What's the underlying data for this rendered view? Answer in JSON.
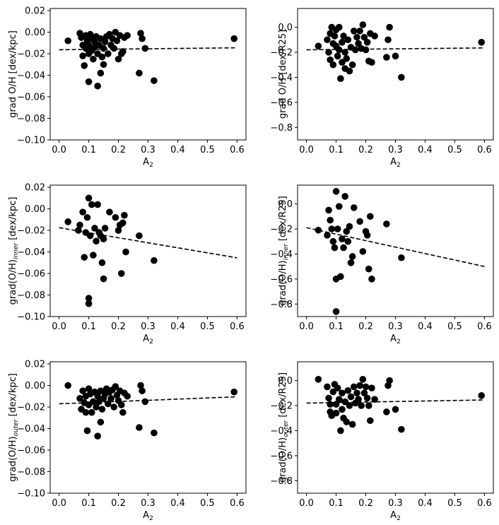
{
  "chart_data": [
    {
      "type": "scatter",
      "xlabel": "A",
      "xlabel_sub": "2",
      "ylabel": "grad O/H [dex/kpc]",
      "ylabel_sub": "",
      "ylabel_suffix": "",
      "xlim": [
        -0.03,
        0.63
      ],
      "ylim": [
        -0.1,
        0.022
      ],
      "xticks": [
        0.0,
        0.1,
        0.2,
        0.3,
        0.4,
        0.5,
        0.6
      ],
      "xtick_labels": [
        "0.0",
        "0.1",
        "0.2",
        "0.3",
        "0.4",
        "0.5",
        "0.6"
      ],
      "yticks": [
        -0.1,
        -0.08,
        -0.06,
        -0.04,
        -0.02,
        0.0,
        0.02
      ],
      "ytick_labels": [
        "−0.10",
        "−0.08",
        "−0.06",
        "−0.04",
        "−0.02",
        "0.00",
        "0.02"
      ],
      "fit": [
        [
          0.0,
          -0.0163
        ],
        [
          0.6,
          -0.0145
        ]
      ],
      "points": [
        [
          0.03,
          -0.008
        ],
        [
          0.07,
          -0.001
        ],
        [
          0.075,
          -0.005
        ],
        [
          0.08,
          -0.012
        ],
        [
          0.08,
          -0.022
        ],
        [
          0.085,
          -0.031
        ],
        [
          0.09,
          -0.015
        ],
        [
          0.09,
          -0.003
        ],
        [
          0.095,
          -0.008
        ],
        [
          0.1,
          -0.046
        ],
        [
          0.1,
          -0.02
        ],
        [
          0.1,
          -0.012
        ],
        [
          0.105,
          -0.002
        ],
        [
          0.11,
          -0.006
        ],
        [
          0.11,
          -0.017
        ],
        [
          0.115,
          -0.025
        ],
        [
          0.12,
          -0.009
        ],
        [
          0.12,
          -0.014
        ],
        [
          0.125,
          -0.004
        ],
        [
          0.13,
          -0.05
        ],
        [
          0.13,
          -0.02
        ],
        [
          0.135,
          -0.012
        ],
        [
          0.14,
          -0.038
        ],
        [
          0.14,
          -0.006
        ],
        [
          0.145,
          -0.023
        ],
        [
          0.15,
          -0.03
        ],
        [
          0.15,
          -0.015
        ],
        [
          0.155,
          -0.009
        ],
        [
          0.16,
          -0.004
        ],
        [
          0.165,
          -0.02
        ],
        [
          0.17,
          -0.002
        ],
        [
          0.175,
          -0.012
        ],
        [
          0.18,
          -0.006
        ],
        [
          0.185,
          -0.015
        ],
        [
          0.19,
          0.0
        ],
        [
          0.195,
          -0.008
        ],
        [
          0.2,
          -0.025
        ],
        [
          0.205,
          -0.003
        ],
        [
          0.21,
          -0.02
        ],
        [
          0.215,
          -0.018
        ],
        [
          0.22,
          -0.005
        ],
        [
          0.23,
          -0.003
        ],
        [
          0.27,
          -0.038
        ],
        [
          0.275,
          -0.001
        ],
        [
          0.28,
          -0.006
        ],
        [
          0.29,
          -0.015
        ],
        [
          0.32,
          -0.045
        ],
        [
          0.59,
          -0.006
        ]
      ]
    },
    {
      "type": "scatter",
      "xlabel": "A",
      "xlabel_sub": "2",
      "ylabel": "grad O/H [dex/R25]",
      "ylabel_sub": "",
      "ylabel_suffix": "",
      "xlim": [
        -0.03,
        0.63
      ],
      "ylim": [
        -0.9,
        0.15
      ],
      "xticks": [
        0.0,
        0.1,
        0.2,
        0.3,
        0.4,
        0.5,
        0.6
      ],
      "xtick_labels": [
        "0.0",
        "0.1",
        "0.2",
        "0.3",
        "0.4",
        "0.5",
        "0.6"
      ],
      "yticks": [
        -0.8,
        -0.6,
        -0.4,
        -0.2,
        0.0
      ],
      "ytick_labels": [
        "−0.8",
        "−0.6",
        "−0.4",
        "−0.2",
        "0.0"
      ],
      "fit": [
        [
          0.0,
          -0.18
        ],
        [
          0.6,
          -0.165
        ]
      ],
      "points": [
        [
          0.04,
          -0.15
        ],
        [
          0.07,
          -0.1
        ],
        [
          0.075,
          -0.2
        ],
        [
          0.08,
          -0.26
        ],
        [
          0.08,
          -0.05
        ],
        [
          0.085,
          0.0
        ],
        [
          0.09,
          -0.13
        ],
        [
          0.09,
          -0.3
        ],
        [
          0.095,
          -0.07
        ],
        [
          0.1,
          -0.15
        ],
        [
          0.1,
          -0.02
        ],
        [
          0.105,
          -0.23
        ],
        [
          0.11,
          -0.18
        ],
        [
          0.11,
          0.0
        ],
        [
          0.115,
          -0.41
        ],
        [
          0.12,
          -0.28
        ],
        [
          0.12,
          -0.12
        ],
        [
          0.125,
          -0.07
        ],
        [
          0.13,
          -0.33
        ],
        [
          0.13,
          -0.2
        ],
        [
          0.135,
          -0.25
        ],
        [
          0.14,
          -0.1
        ],
        [
          0.145,
          -0.35
        ],
        [
          0.15,
          -0.16
        ],
        [
          0.155,
          -0.3
        ],
        [
          0.16,
          -0.03
        ],
        [
          0.165,
          -0.18
        ],
        [
          0.17,
          -0.08
        ],
        [
          0.175,
          -0.13
        ],
        [
          0.18,
          -0.03
        ],
        [
          0.185,
          -0.17
        ],
        [
          0.19,
          0.02
        ],
        [
          0.195,
          -0.08
        ],
        [
          0.2,
          -0.18
        ],
        [
          0.205,
          -0.12
        ],
        [
          0.21,
          -0.27
        ],
        [
          0.215,
          -0.05
        ],
        [
          0.22,
          -0.28
        ],
        [
          0.23,
          -0.07
        ],
        [
          0.27,
          -0.24
        ],
        [
          0.275,
          -0.1
        ],
        [
          0.28,
          0.0
        ],
        [
          0.3,
          -0.23
        ],
        [
          0.32,
          -0.4
        ],
        [
          0.59,
          -0.12
        ]
      ]
    },
    {
      "type": "scatter",
      "xlabel": "A",
      "xlabel_sub": "2",
      "ylabel": "grad(O/H)",
      "ylabel_sub": "inner",
      "ylabel_suffix": " [dex/kpc]",
      "xlim": [
        -0.03,
        0.63
      ],
      "ylim": [
        -0.1,
        0.022
      ],
      "xticks": [
        0.0,
        0.1,
        0.2,
        0.3,
        0.4,
        0.5,
        0.6
      ],
      "xtick_labels": [
        "0.0",
        "0.1",
        "0.2",
        "0.3",
        "0.4",
        "0.5",
        "0.6"
      ],
      "yticks": [
        -0.1,
        -0.08,
        -0.06,
        -0.04,
        -0.02,
        0.0,
        0.02
      ],
      "ytick_labels": [
        "−0.10",
        "−0.08",
        "−0.06",
        "−0.04",
        "−0.02",
        "0.00",
        "0.02"
      ],
      "fit": [
        [
          0.0,
          -0.0175
        ],
        [
          0.6,
          -0.0455
        ]
      ],
      "points": [
        [
          0.03,
          -0.012
        ],
        [
          0.065,
          -0.02
        ],
        [
          0.07,
          -0.015
        ],
        [
          0.08,
          -0.003
        ],
        [
          0.085,
          -0.045
        ],
        [
          0.09,
          -0.022
        ],
        [
          0.095,
          -0.008
        ],
        [
          0.1,
          -0.083
        ],
        [
          0.1,
          -0.088
        ],
        [
          0.1,
          0.01
        ],
        [
          0.105,
          -0.025
        ],
        [
          0.11,
          0.004
        ],
        [
          0.115,
          -0.043
        ],
        [
          0.12,
          -0.018
        ],
        [
          0.125,
          -0.03
        ],
        [
          0.13,
          0.004
        ],
        [
          0.135,
          -0.022
        ],
        [
          0.14,
          -0.025
        ],
        [
          0.145,
          -0.05
        ],
        [
          0.15,
          -0.065
        ],
        [
          0.15,
          -0.028
        ],
        [
          0.155,
          -0.018
        ],
        [
          0.17,
          -0.003
        ],
        [
          0.19,
          -0.008
        ],
        [
          0.2,
          -0.02
        ],
        [
          0.205,
          -0.015
        ],
        [
          0.21,
          -0.06
        ],
        [
          0.215,
          -0.013
        ],
        [
          0.22,
          -0.006
        ],
        [
          0.225,
          -0.04
        ],
        [
          0.27,
          -0.025
        ],
        [
          0.32,
          -0.048
        ]
      ]
    },
    {
      "type": "scatter",
      "xlabel": "A",
      "xlabel_sub": "2",
      "ylabel": "grad(O/H)",
      "ylabel_sub": "inner",
      "ylabel_suffix": " [dex/R25]",
      "xlim": [
        -0.03,
        0.63
      ],
      "ylim": [
        -0.9,
        0.15
      ],
      "xticks": [
        0.0,
        0.1,
        0.2,
        0.3,
        0.4,
        0.5,
        0.6
      ],
      "xtick_labels": [
        "0.0",
        "0.1",
        "0.2",
        "0.3",
        "0.4",
        "0.5",
        "0.6"
      ],
      "yticks": [
        -0.8,
        -0.6,
        -0.4,
        -0.2,
        0.0
      ],
      "ytick_labels": [
        "−0.8",
        "−0.6",
        "−0.4",
        "−0.2",
        "0.0"
      ],
      "fit": [
        [
          0.0,
          -0.19
        ],
        [
          0.6,
          -0.5
        ]
      ],
      "points": [
        [
          0.04,
          -0.21
        ],
        [
          0.07,
          -0.25
        ],
        [
          0.075,
          -0.05
        ],
        [
          0.08,
          -0.13
        ],
        [
          0.085,
          -0.2
        ],
        [
          0.09,
          -0.3
        ],
        [
          0.095,
          -0.35
        ],
        [
          0.1,
          0.1
        ],
        [
          0.1,
          -0.6
        ],
        [
          0.1,
          -0.86
        ],
        [
          0.105,
          -0.2
        ],
        [
          0.11,
          -0.02
        ],
        [
          0.115,
          -0.58
        ],
        [
          0.12,
          -0.28
        ],
        [
          0.125,
          -0.35
        ],
        [
          0.13,
          0.06
        ],
        [
          0.135,
          -0.22
        ],
        [
          0.14,
          -0.3
        ],
        [
          0.145,
          -0.18
        ],
        [
          0.15,
          -0.47
        ],
        [
          0.155,
          -0.42
        ],
        [
          0.16,
          -0.03
        ],
        [
          0.18,
          -0.14
        ],
        [
          0.19,
          -0.38
        ],
        [
          0.2,
          -0.22
        ],
        [
          0.205,
          -0.25
        ],
        [
          0.21,
          -0.52
        ],
        [
          0.215,
          -0.1
        ],
        [
          0.22,
          -0.6
        ],
        [
          0.27,
          -0.16
        ],
        [
          0.32,
          -0.43
        ]
      ]
    },
    {
      "type": "scatter",
      "xlabel": "A",
      "xlabel_sub": "2",
      "ylabel": "grad(O/H)",
      "ylabel_sub": "outer",
      "ylabel_suffix": " [dex/kpc]",
      "xlim": [
        -0.03,
        0.63
      ],
      "ylim": [
        -0.1,
        0.022
      ],
      "xticks": [
        0.0,
        0.1,
        0.2,
        0.3,
        0.4,
        0.5,
        0.6
      ],
      "xtick_labels": [
        "0.0",
        "0.1",
        "0.2",
        "0.3",
        "0.4",
        "0.5",
        "0.6"
      ],
      "yticks": [
        -0.1,
        -0.08,
        -0.06,
        -0.04,
        -0.02,
        0.0,
        0.02
      ],
      "ytick_labels": [
        "−0.10",
        "−0.08",
        "−0.06",
        "−0.04",
        "−0.02",
        "0.00",
        "0.02"
      ],
      "fit": [
        [
          0.0,
          -0.017
        ],
        [
          0.6,
          -0.0105
        ]
      ],
      "points": [
        [
          0.03,
          0.0
        ],
        [
          0.07,
          -0.012
        ],
        [
          0.075,
          -0.022
        ],
        [
          0.08,
          -0.005
        ],
        [
          0.085,
          -0.016
        ],
        [
          0.09,
          -0.025
        ],
        [
          0.09,
          -0.01
        ],
        [
          0.095,
          -0.042
        ],
        [
          0.1,
          -0.018
        ],
        [
          0.1,
          -0.003
        ],
        [
          0.105,
          -0.008
        ],
        [
          0.11,
          -0.025
        ],
        [
          0.115,
          -0.015
        ],
        [
          0.12,
          -0.006
        ],
        [
          0.125,
          -0.02
        ],
        [
          0.13,
          -0.047
        ],
        [
          0.13,
          -0.01
        ],
        [
          0.135,
          -0.015
        ],
        [
          0.14,
          -0.034
        ],
        [
          0.14,
          -0.005
        ],
        [
          0.145,
          -0.022
        ],
        [
          0.15,
          -0.012
        ],
        [
          0.155,
          -0.008
        ],
        [
          0.16,
          -0.003
        ],
        [
          0.165,
          -0.017
        ],
        [
          0.17,
          -0.006
        ],
        [
          0.175,
          -0.012
        ],
        [
          0.18,
          -0.004
        ],
        [
          0.185,
          -0.02
        ],
        [
          0.19,
          -0.001
        ],
        [
          0.195,
          -0.009
        ],
        [
          0.2,
          -0.014
        ],
        [
          0.205,
          -0.005
        ],
        [
          0.21,
          -0.018
        ],
        [
          0.215,
          -0.025
        ],
        [
          0.22,
          -0.007
        ],
        [
          0.23,
          -0.01
        ],
        [
          0.27,
          -0.039
        ],
        [
          0.275,
          0.0
        ],
        [
          0.28,
          -0.005
        ],
        [
          0.29,
          -0.015
        ],
        [
          0.32,
          -0.044
        ],
        [
          0.59,
          -0.006
        ]
      ]
    },
    {
      "type": "scatter",
      "xlabel": "A",
      "xlabel_sub": "2",
      "ylabel": "grad(O/H)",
      "ylabel_sub": "outer",
      "ylabel_suffix": " [dex/R25]",
      "xlim": [
        -0.03,
        0.63
      ],
      "ylim": [
        -0.9,
        0.15
      ],
      "xticks": [
        0.0,
        0.1,
        0.2,
        0.3,
        0.4,
        0.5,
        0.6
      ],
      "xtick_labels": [
        "0.0",
        "0.1",
        "0.2",
        "0.3",
        "0.4",
        "0.5",
        "0.6"
      ],
      "yticks": [
        -0.8,
        -0.6,
        -0.4,
        -0.2,
        0.0
      ],
      "ytick_labels": [
        "−0.8",
        "−0.6",
        "−0.4",
        "−0.2",
        "0.0"
      ],
      "fit": [
        [
          0.0,
          -0.18
        ],
        [
          0.6,
          -0.155
        ]
      ],
      "points": [
        [
          0.04,
          0.01
        ],
        [
          0.07,
          -0.05
        ],
        [
          0.075,
          -0.14
        ],
        [
          0.08,
          -0.25
        ],
        [
          0.08,
          -0.19
        ],
        [
          0.085,
          -0.28
        ],
        [
          0.09,
          -0.09
        ],
        [
          0.095,
          -0.03
        ],
        [
          0.1,
          -0.19
        ],
        [
          0.1,
          -0.26
        ],
        [
          0.105,
          -0.06
        ],
        [
          0.11,
          -0.15
        ],
        [
          0.115,
          -0.4
        ],
        [
          0.12,
          -0.23
        ],
        [
          0.12,
          -0.1
        ],
        [
          0.125,
          -0.3
        ],
        [
          0.13,
          -0.17
        ],
        [
          0.135,
          -0.33
        ],
        [
          0.14,
          -0.08
        ],
        [
          0.145,
          -0.2
        ],
        [
          0.15,
          -0.13
        ],
        [
          0.155,
          -0.35
        ],
        [
          0.16,
          -0.05
        ],
        [
          0.165,
          -0.18
        ],
        [
          0.17,
          -0.1
        ],
        [
          0.175,
          -0.15
        ],
        [
          0.18,
          -0.04
        ],
        [
          0.185,
          -0.2
        ],
        [
          0.19,
          0.01
        ],
        [
          0.195,
          -0.1
        ],
        [
          0.2,
          -0.05
        ],
        [
          0.205,
          -0.14
        ],
        [
          0.21,
          -0.2
        ],
        [
          0.215,
          -0.32
        ],
        [
          0.22,
          -0.06
        ],
        [
          0.23,
          -0.15
        ],
        [
          0.27,
          -0.25
        ],
        [
          0.275,
          -0.04
        ],
        [
          0.28,
          0.0
        ],
        [
          0.3,
          -0.23
        ],
        [
          0.32,
          -0.39
        ],
        [
          0.59,
          -0.12
        ]
      ]
    }
  ]
}
